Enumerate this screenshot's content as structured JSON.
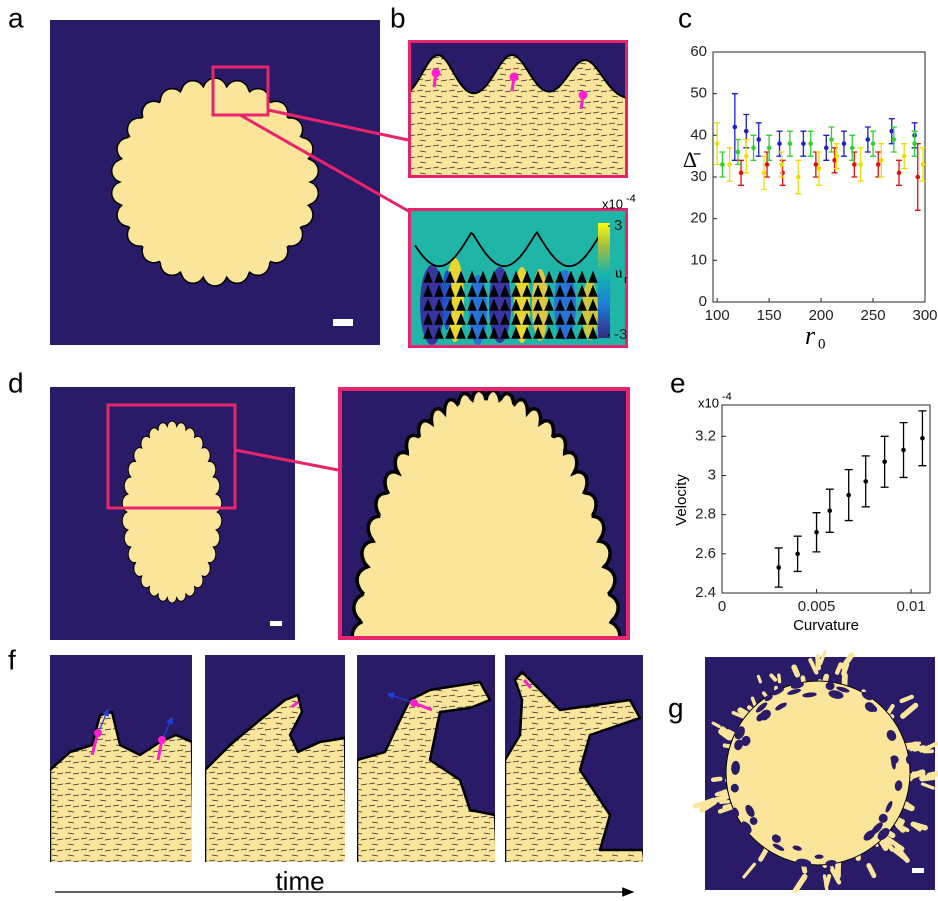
{
  "panel_labels": [
    "a",
    "b",
    "c",
    "d",
    "e",
    "f",
    "g"
  ],
  "panel_b": {
    "colorbar": {
      "scale_base": "x10",
      "scale_exponent": "-4",
      "lim": [
        -3,
        3
      ],
      "ticks": [
        -3,
        3
      ],
      "label": "u",
      "label_subscript": "r"
    }
  },
  "panel_f": {
    "axis_label": "time"
  },
  "chart_data": [
    {
      "type": "scatter",
      "ylabel": "Δ̄",
      "xlabel": "r",
      "xlabel_subscript": "0",
      "xlim": [
        96,
        300
      ],
      "ylim": [
        0,
        60
      ],
      "xticks": [
        100,
        150,
        200,
        250,
        300
      ],
      "yticks": [
        0,
        10,
        20,
        30,
        40,
        50,
        60
      ],
      "series": [
        {
          "color": "#1f1fd0",
          "x": [
            117,
            128,
            140,
            160,
            183,
            205,
            222,
            245,
            268,
            290
          ],
          "values": [
            42,
            41,
            39,
            38,
            38,
            37,
            38,
            39,
            41,
            40
          ],
          "errors": [
            8,
            4,
            4,
            3,
            3,
            3,
            3,
            3,
            3,
            3
          ]
        },
        {
          "color": "#e01010",
          "x": [
            123,
            148,
            163,
            195,
            213,
            232,
            255,
            275,
            293
          ],
          "values": [
            31,
            33,
            31,
            33,
            34,
            33,
            33,
            31,
            30
          ],
          "errors": [
            3,
            3,
            3,
            3,
            3,
            3,
            3,
            3,
            8
          ]
        },
        {
          "color": "#30d030",
          "x": [
            105,
            120,
            135,
            150,
            170,
            190,
            210,
            230,
            250,
            270,
            290
          ],
          "values": [
            33,
            36,
            37,
            37,
            38,
            38,
            39,
            37,
            38,
            39,
            38
          ],
          "errors": [
            3,
            3,
            3,
            3,
            3,
            3,
            3,
            3,
            3,
            3,
            3
          ]
        },
        {
          "color": "#e8e000",
          "x": [
            100,
            112,
            128,
            145,
            162,
            178,
            198,
            215,
            238,
            258,
            280,
            298
          ],
          "values": [
            38,
            33,
            35,
            31,
            33,
            30,
            32,
            35,
            33,
            34,
            35,
            33
          ],
          "errors": [
            5,
            4,
            4,
            4,
            3,
            4,
            4,
            3,
            4,
            4,
            3,
            4
          ]
        }
      ]
    },
    {
      "type": "scatter",
      "ylabel": "Velocity",
      "xlabel": "Curvature",
      "scale_base": "x10",
      "scale_exponent": "-4",
      "xlim": [
        0,
        0.011
      ],
      "ylim": [
        2.4,
        3.36
      ],
      "xticks": [
        0,
        0.005,
        0.01
      ],
      "yticks": [
        2.4,
        2.6,
        2.8,
        3,
        3.2
      ],
      "series": [
        {
          "color": "#000000",
          "x": [
            0.003,
            0.004,
            0.005,
            0.0057,
            0.0067,
            0.0076,
            0.0086,
            0.0096,
            0.0106
          ],
          "values": [
            2.53,
            2.6,
            2.71,
            2.82,
            2.9,
            2.97,
            3.07,
            3.13,
            3.19
          ],
          "errors": [
            0.1,
            0.09,
            0.1,
            0.11,
            0.13,
            0.13,
            0.13,
            0.14,
            0.14
          ]
        }
      ]
    }
  ]
}
